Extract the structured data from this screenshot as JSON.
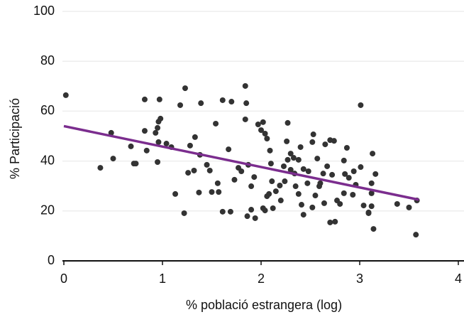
{
  "chart_data": {
    "type": "scatter",
    "x_label": "% població estrangera (log)",
    "y_label": "% Participació",
    "xlim": [
      0,
      4
    ],
    "xticks": [
      0,
      1,
      2,
      3,
      4
    ],
    "ylim": [
      0,
      100
    ],
    "yticks": [
      0,
      20,
      40,
      60,
      80,
      100
    ],
    "grid": true,
    "color": "#333333",
    "x": [
      0.02,
      0.48,
      0.5,
      0.37,
      0.68,
      0.71,
      0.73,
      0.82,
      0.82,
      0.84,
      0.93,
      0.95,
      0.96,
      0.96,
      0.97,
      0.98,
      0.95,
      1.04,
      1.09,
      1.18,
      1.23,
      1.22,
      1.13,
      1.26,
      1.28,
      1.33,
      1.32,
      1.37,
      1.39,
      1.45,
      1.48,
      1.5,
      1.38,
      1.57,
      1.61,
      1.54,
      1.61,
      1.56,
      1.7,
      1.69,
      1.67,
      1.73,
      1.77,
      1.8,
      1.84,
      1.85,
      1.84,
      1.87,
      1.86,
      1.9,
      1.9,
      1.93,
      1.94,
      1.97,
      2.0,
      2.02,
      2.04,
      2.06,
      2.09,
      2.1,
      2.02,
      2.04,
      2.12,
      2.06,
      2.08,
      2.11,
      2.15,
      2.19,
      2.2,
      2.24,
      2.23,
      2.26,
      2.27,
      2.27,
      2.3,
      2.3,
      2.33,
      2.34,
      2.38,
      2.4,
      2.35,
      2.38,
      2.41,
      2.43,
      2.43,
      2.47,
      2.48,
      2.52,
      2.52,
      2.55,
      2.57,
      2.53,
      2.59,
      2.6,
      2.63,
      2.65,
      2.64,
      2.67,
      2.7,
      2.75,
      2.77,
      2.8,
      2.7,
      2.74,
      2.72,
      2.85,
      2.89,
      2.84,
      2.87,
      2.84,
      2.93,
      2.94,
      2.96,
      3.01,
      3.04,
      3.09,
      3.09,
      3.12,
      3.12,
      3.13,
      3.14,
      3.16,
      3.12,
      3.01,
      3.38,
      3.5,
      3.57,
      3.58
    ],
    "values": [
      66.4,
      51.3,
      41.0,
      37.3,
      45.9,
      39.0,
      39.0,
      64.7,
      52.1,
      44.2,
      51.3,
      39.6,
      55.8,
      47.6,
      64.7,
      57.0,
      53.3,
      47.0,
      45.6,
      62.4,
      69.2,
      19.1,
      26.8,
      35.3,
      46.2,
      49.6,
      36.2,
      27.4,
      63.2,
      38.5,
      36.2,
      27.6,
      42.5,
      27.6,
      19.7,
      55.0,
      64.4,
      31.1,
      63.8,
      19.7,
      44.7,
      32.5,
      37.3,
      35.9,
      70.1,
      63.2,
      56.7,
      38.5,
      17.9,
      20.5,
      29.9,
      33.6,
      17.1,
      54.7,
      52.4,
      55.6,
      51.0,
      49.0,
      44.2,
      39.0,
      21.1,
      20.2,
      21.1,
      25.9,
      26.8,
      31.9,
      27.9,
      30.2,
      24.2,
      31.9,
      37.9,
      47.9,
      40.5,
      55.3,
      36.5,
      43.0,
      41.3,
      35.0,
      40.5,
      45.6,
      29.9,
      26.8,
      22.5,
      36.8,
      18.5,
      31.1,
      35.9,
      47.6,
      21.4,
      26.2,
      41.0,
      50.7,
      29.9,
      31.1,
      35.0,
      46.7,
      23.1,
      37.9,
      15.4,
      15.7,
      24.2,
      22.8,
      48.4,
      48.1,
      34.5,
      34.8,
      33.3,
      27.1,
      45.3,
      40.2,
      26.5,
      35.9,
      30.5,
      62.4,
      22.2,
      19.1,
      19.4,
      27.1,
      31.1,
      43.0,
      12.8,
      34.8,
      21.9,
      37.6,
      22.8,
      21.4,
      10.5,
      24.2
    ],
    "trend": {
      "x": [
        0,
        3.6
      ],
      "values": [
        54,
        24.5
      ],
      "color": "#7b2d8e"
    }
  }
}
